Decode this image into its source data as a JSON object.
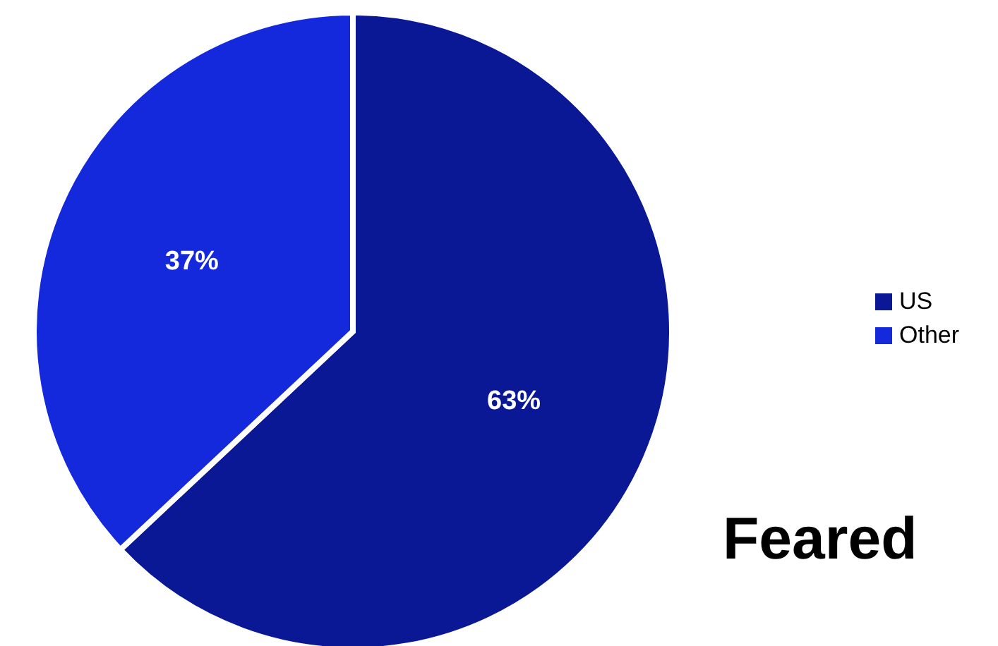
{
  "chart_data": {
    "type": "pie",
    "title": "Feared",
    "categories": [
      "US",
      "Other"
    ],
    "values": [
      63,
      37
    ],
    "value_labels": [
      "63%",
      "37%"
    ],
    "colors": [
      "#0b1896",
      "#1428dc"
    ],
    "legend": "right"
  }
}
